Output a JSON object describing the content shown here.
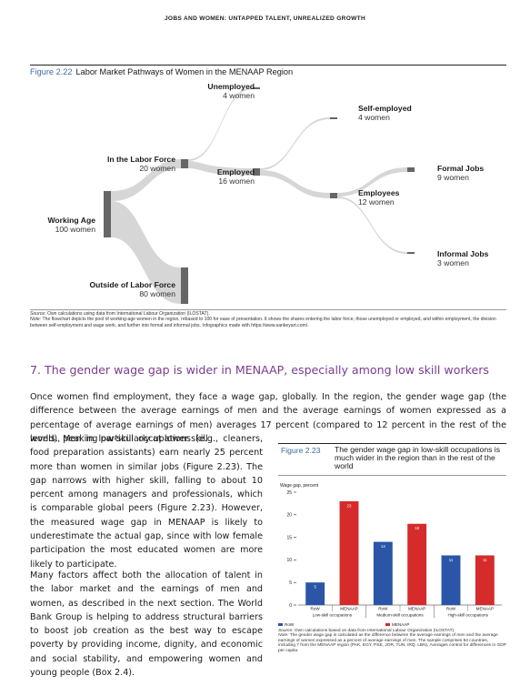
{
  "running_head": "JOBS AND WOMEN: UNTAPPED TALENT, UNREALIZED GROWTH",
  "figure1": {
    "number": "Figure 2.22",
    "title": "Labor Market Pathways of Women in the MENAAP Region",
    "nodes": {
      "working_age": {
        "name": "Working Age",
        "value": "100 women"
      },
      "in_labor_force": {
        "name": "In the Labor Force",
        "value": "20 women"
      },
      "outside_labor_force": {
        "name": "Outside of Labor Force",
        "value": "80 women"
      },
      "unemployed": {
        "name": "Unemployed",
        "value": "4 women"
      },
      "employed": {
        "name": "Employed",
        "value": "16 women"
      },
      "self_employed": {
        "name": "Self-employed",
        "value": "4 women"
      },
      "employees": {
        "name": "Employees",
        "value": "12 women"
      },
      "formal_jobs": {
        "name": "Formal Jobs",
        "value": "9 women"
      },
      "informal_jobs": {
        "name": "Informal Jobs",
        "value": "3 women"
      }
    },
    "source_label": "Source:",
    "source_text": "Own calculations using data from International Labour Organization (ILOSTAT).",
    "note_label": "Note:",
    "note_text": "The flowchart depicts the pool of working-age women in the region, rebased to 100 for ease of presentation. It shows the shares entering the labor force, those unemployed or employed, and within employment, the division between self-employment and wage work, and further into formal and informal jobs. Infographics made with https://www.sankeyart.com/."
  },
  "section_heading": "7. The gender wage gap is wider in MENAAP, especially among low skill workers",
  "paragraph_full": "Once women find employment, they face a wage gap, globally. In the region, the gender wage gap (the difference between the average earnings of men and the average earnings of women expressed as a percentage of average earnings of men) averages 17 percent (compared to 12 percent in the rest of the world), peaking particularly at lower skill",
  "paragraph_left": "levels. Men in low-skill occupations (e.g., cleaners, food preparation assistants) earn nearly 25 percent more than women in similar jobs (Figure 2.23). The gap narrows with higher skill, falling to about 10 percent among managers and professionals, which is comparable global peers (Figure 2.23). However, the measured wage gap in MENAAP is likely to underestimate the actual gap, since with low female participation the most educated women are more likely to participate.",
  "paragraph_bottom": "Many factors affect both the allocation of talent in the labor market and the earnings of men and women, as described in the next section. The World Bank Group is helping to address structural barriers to boost job creation as the best way to escape poverty by providing income, dignity, and economic and social stability, and empowering women and young people (Box 2.4).",
  "figure2": {
    "number": "Figure 2.23",
    "title": "The gender wage gap in low-skill occupations is much wider in the region than in the rest of the world",
    "source_label": "Source:",
    "source_text": "Own calculations based on data from International Labour Organization (ILOSTAT).",
    "note_label": "Note:",
    "note_text": "The gender wage gap is calculated as the difference between the average earnings of men and the average earnings of women expressed as a percent of average earnings of men. The sample comprises 94 countries, including 7 from the MENAAP region (PAK, EGY, PSE, JOR, TUN, IRQ, LBN). Averages control for differences in GDP per capita."
  },
  "chart_data": {
    "type": "bar",
    "ylabel": "Wage gap, percent",
    "ylim": [
      0,
      25
    ],
    "yticks": [
      0,
      5,
      10,
      15,
      20,
      25
    ],
    "groups": [
      "Low-skill occupations",
      "Medium-skill occupations",
      "High-skill occupations"
    ],
    "categories": [
      "RoW",
      "MENAAP",
      "RoW",
      "MENAAP",
      "RoW",
      "MENAAP"
    ],
    "values": [
      5,
      23,
      14,
      18,
      11,
      11
    ],
    "series_of_bar": [
      "RoW",
      "MENAAP",
      "RoW",
      "MENAAP",
      "RoW",
      "MENAAP"
    ],
    "legend": [
      "RoW",
      "MENAAP"
    ],
    "colors": {
      "RoW": "#2b55a6",
      "MENAAP": "#d52b2b"
    },
    "grid": false,
    "legend_position": "bottom-left"
  },
  "colors": {
    "accent_blue": "#3f6aa6",
    "heading_purple": "#7a3b8f",
    "sankey_node": "#666666",
    "sankey_flow": "#d4d4d4"
  }
}
